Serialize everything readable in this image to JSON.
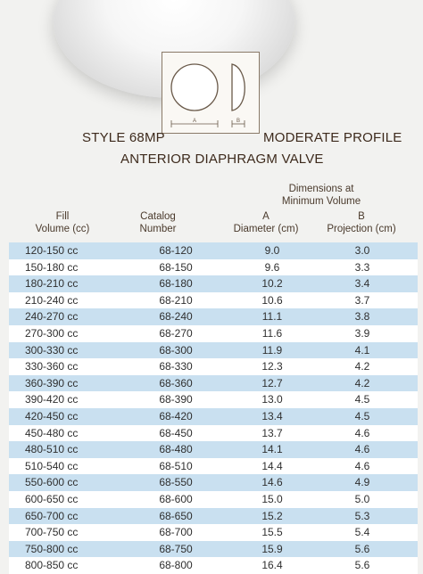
{
  "titles": {
    "style": "STYLE 68MP",
    "profile": "MODERATE PROFILE",
    "valve": "ANTERIOR DIAPHRAGM VALVE"
  },
  "diagram": {
    "label_a": "A",
    "label_b": "B"
  },
  "headers": {
    "dimensions": [
      "Dimensions at",
      "Minimum Volume"
    ],
    "fill": [
      "Fill",
      "Volume (cc)"
    ],
    "catalog": [
      "Catalog",
      "Number"
    ],
    "a": [
      "A",
      "Diameter (cm)"
    ],
    "b": [
      "B",
      "Projection (cm)"
    ]
  },
  "rows": [
    {
      "fill": "120-150 cc",
      "catalog": "68-120",
      "a": "9.0",
      "b": "3.0"
    },
    {
      "fill": "150-180 cc",
      "catalog": "68-150",
      "a": "9.6",
      "b": "3.3"
    },
    {
      "fill": "180-210 cc",
      "catalog": "68-180",
      "a": "10.2",
      "b": "3.4"
    },
    {
      "fill": "210-240 cc",
      "catalog": "68-210",
      "a": "10.6",
      "b": "3.7"
    },
    {
      "fill": "240-270 cc",
      "catalog": "68-240",
      "a": "11.1",
      "b": "3.8"
    },
    {
      "fill": "270-300 cc",
      "catalog": "68-270",
      "a": "11.6",
      "b": "3.9"
    },
    {
      "fill": "300-330 cc",
      "catalog": "68-300",
      "a": "11.9",
      "b": "4.1"
    },
    {
      "fill": "330-360 cc",
      "catalog": "68-330",
      "a": "12.3",
      "b": "4.2"
    },
    {
      "fill": "360-390 cc",
      "catalog": "68-360",
      "a": "12.7",
      "b": "4.2"
    },
    {
      "fill": "390-420 cc",
      "catalog": "68-390",
      "a": "13.0",
      "b": "4.5"
    },
    {
      "fill": "420-450 cc",
      "catalog": "68-420",
      "a": "13.4",
      "b": "4.5"
    },
    {
      "fill": "450-480 cc",
      "catalog": "68-450",
      "a": "13.7",
      "b": "4.6"
    },
    {
      "fill": "480-510 cc",
      "catalog": "68-480",
      "a": "14.1",
      "b": "4.6"
    },
    {
      "fill": "510-540 cc",
      "catalog": "68-510",
      "a": "14.4",
      "b": "4.6"
    },
    {
      "fill": "550-600 cc",
      "catalog": "68-550",
      "a": "14.6",
      "b": "4.9"
    },
    {
      "fill": "600-650 cc",
      "catalog": "68-600",
      "a": "15.0",
      "b": "5.0"
    },
    {
      "fill": "650-700 cc",
      "catalog": "68-650",
      "a": "15.2",
      "b": "5.3"
    },
    {
      "fill": "700-750 cc",
      "catalog": "68-700",
      "a": "15.5",
      "b": "5.4"
    },
    {
      "fill": "750-800 cc",
      "catalog": "68-750",
      "a": "15.9",
      "b": "5.6"
    },
    {
      "fill": "800-850 cc",
      "catalog": "68-800",
      "a": "16.4",
      "b": "5.6"
    }
  ]
}
